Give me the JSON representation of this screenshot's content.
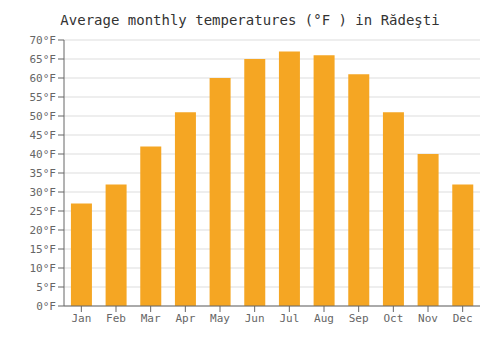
{
  "chart_data": {
    "type": "bar",
    "title": "Average monthly temperatures (°F ) in Rădeşti",
    "categories": [
      "Jan",
      "Feb",
      "Mar",
      "Apr",
      "May",
      "Jun",
      "Jul",
      "Aug",
      "Sep",
      "Oct",
      "Nov",
      "Dec"
    ],
    "values": [
      27,
      32,
      42,
      51,
      60,
      65,
      67,
      66,
      61,
      51,
      40,
      32
    ],
    "color": "#F5A623",
    "ylim": [
      0,
      70
    ],
    "yticks": [
      {
        "value": 0,
        "label": "0°F"
      },
      {
        "value": 5,
        "label": "5°F"
      },
      {
        "value": 10,
        "label": "10°F"
      },
      {
        "value": 15,
        "label": "15°F"
      },
      {
        "value": 20,
        "label": "20°F"
      },
      {
        "value": 25,
        "label": "25°F"
      },
      {
        "value": 30,
        "label": "30°F"
      },
      {
        "value": 35,
        "label": "35°F"
      },
      {
        "value": 40,
        "label": "40°F"
      },
      {
        "value": 45,
        "label": "45°F"
      },
      {
        "value": 50,
        "label": "50°F"
      },
      {
        "value": 55,
        "label": "55°F"
      },
      {
        "value": 60,
        "label": "60°F"
      },
      {
        "value": 65,
        "label": "65°F"
      },
      {
        "value": 70,
        "label": "70°F"
      }
    ],
    "grid": true
  }
}
